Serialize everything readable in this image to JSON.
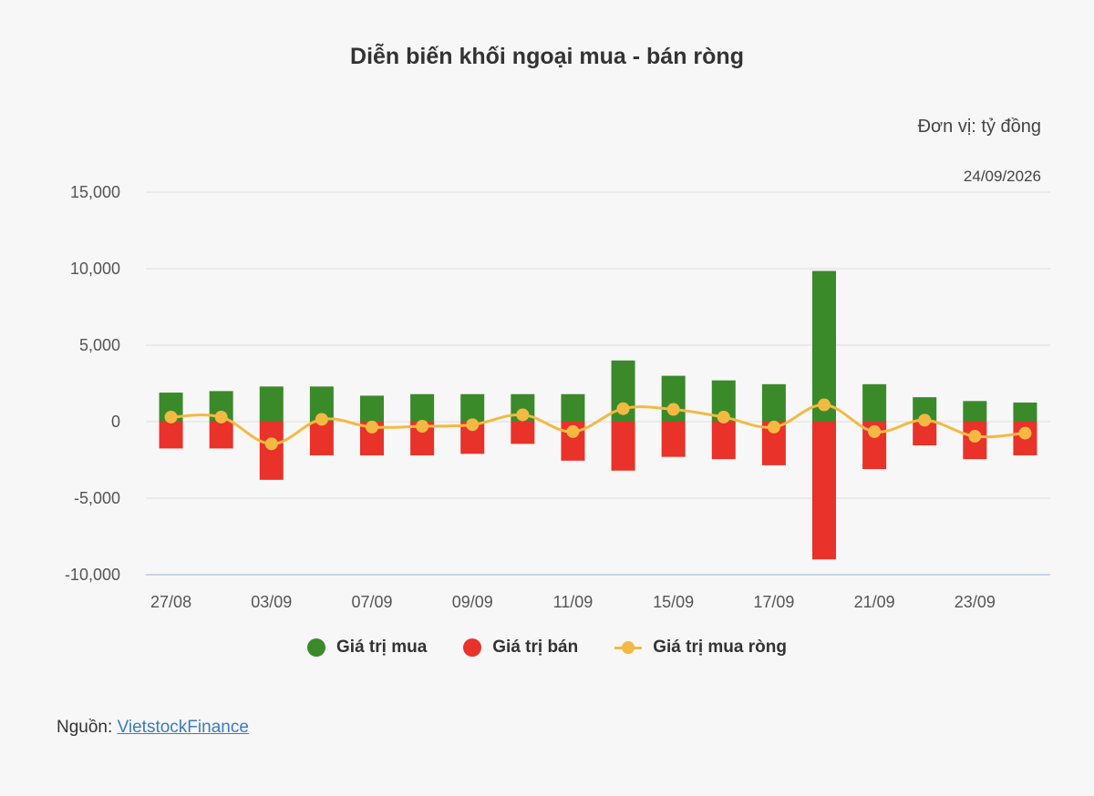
{
  "title": "Diễn biến khối ngoại mua - bán ròng",
  "unit": "Đơn vị: tỷ đồng",
  "date": "24/09/2026",
  "source_label": "Nguồn:",
  "source_link": "VietstockFinance",
  "colors": {
    "buy": "#3a8a2a",
    "sell": "#e8322a",
    "net": "#f4b942"
  },
  "legend": [
    {
      "key": "buy",
      "label": "Giá trị mua"
    },
    {
      "key": "sell",
      "label": "Giá trị bán"
    },
    {
      "key": "net",
      "label": "Giá trị mua ròng"
    }
  ],
  "chart_data": {
    "type": "bar",
    "ylim": [
      -10000,
      15000
    ],
    "yticks": [
      15000,
      10000,
      5000,
      0,
      -5000,
      -10000
    ],
    "ytick_labels": [
      "15,000",
      "10,000",
      "5,000",
      "0",
      "-5,000",
      "-10,000"
    ],
    "x_tick_labels": [
      "27/08",
      "",
      "03/09",
      "",
      "07/09",
      "",
      "09/09",
      "",
      "11/09",
      "",
      "15/09",
      "",
      "17/09",
      "",
      "21/09",
      "",
      "23/09",
      ""
    ],
    "series": [
      {
        "name": "Giá trị mua",
        "type": "bar",
        "values": [
          1900,
          2000,
          2300,
          2300,
          1700,
          1800,
          1800,
          1800,
          1800,
          4000,
          3000,
          2700,
          2450,
          9850,
          2450,
          1600,
          1350,
          1250
        ]
      },
      {
        "name": "Giá trị bán",
        "type": "bar",
        "values": [
          -1750,
          -1750,
          -3800,
          -2200,
          -2200,
          -2200,
          -2100,
          -1450,
          -2550,
          -3200,
          -2300,
          -2450,
          -2850,
          -9000,
          -3100,
          -1550,
          -2450,
          -2200
        ]
      },
      {
        "name": "Giá trị mua ròng",
        "type": "line",
        "values": [
          300,
          300,
          -1450,
          150,
          -350,
          -300,
          -200,
          450,
          -650,
          850,
          800,
          300,
          -350,
          1100,
          -650,
          100,
          -950,
          -750
        ]
      }
    ]
  }
}
